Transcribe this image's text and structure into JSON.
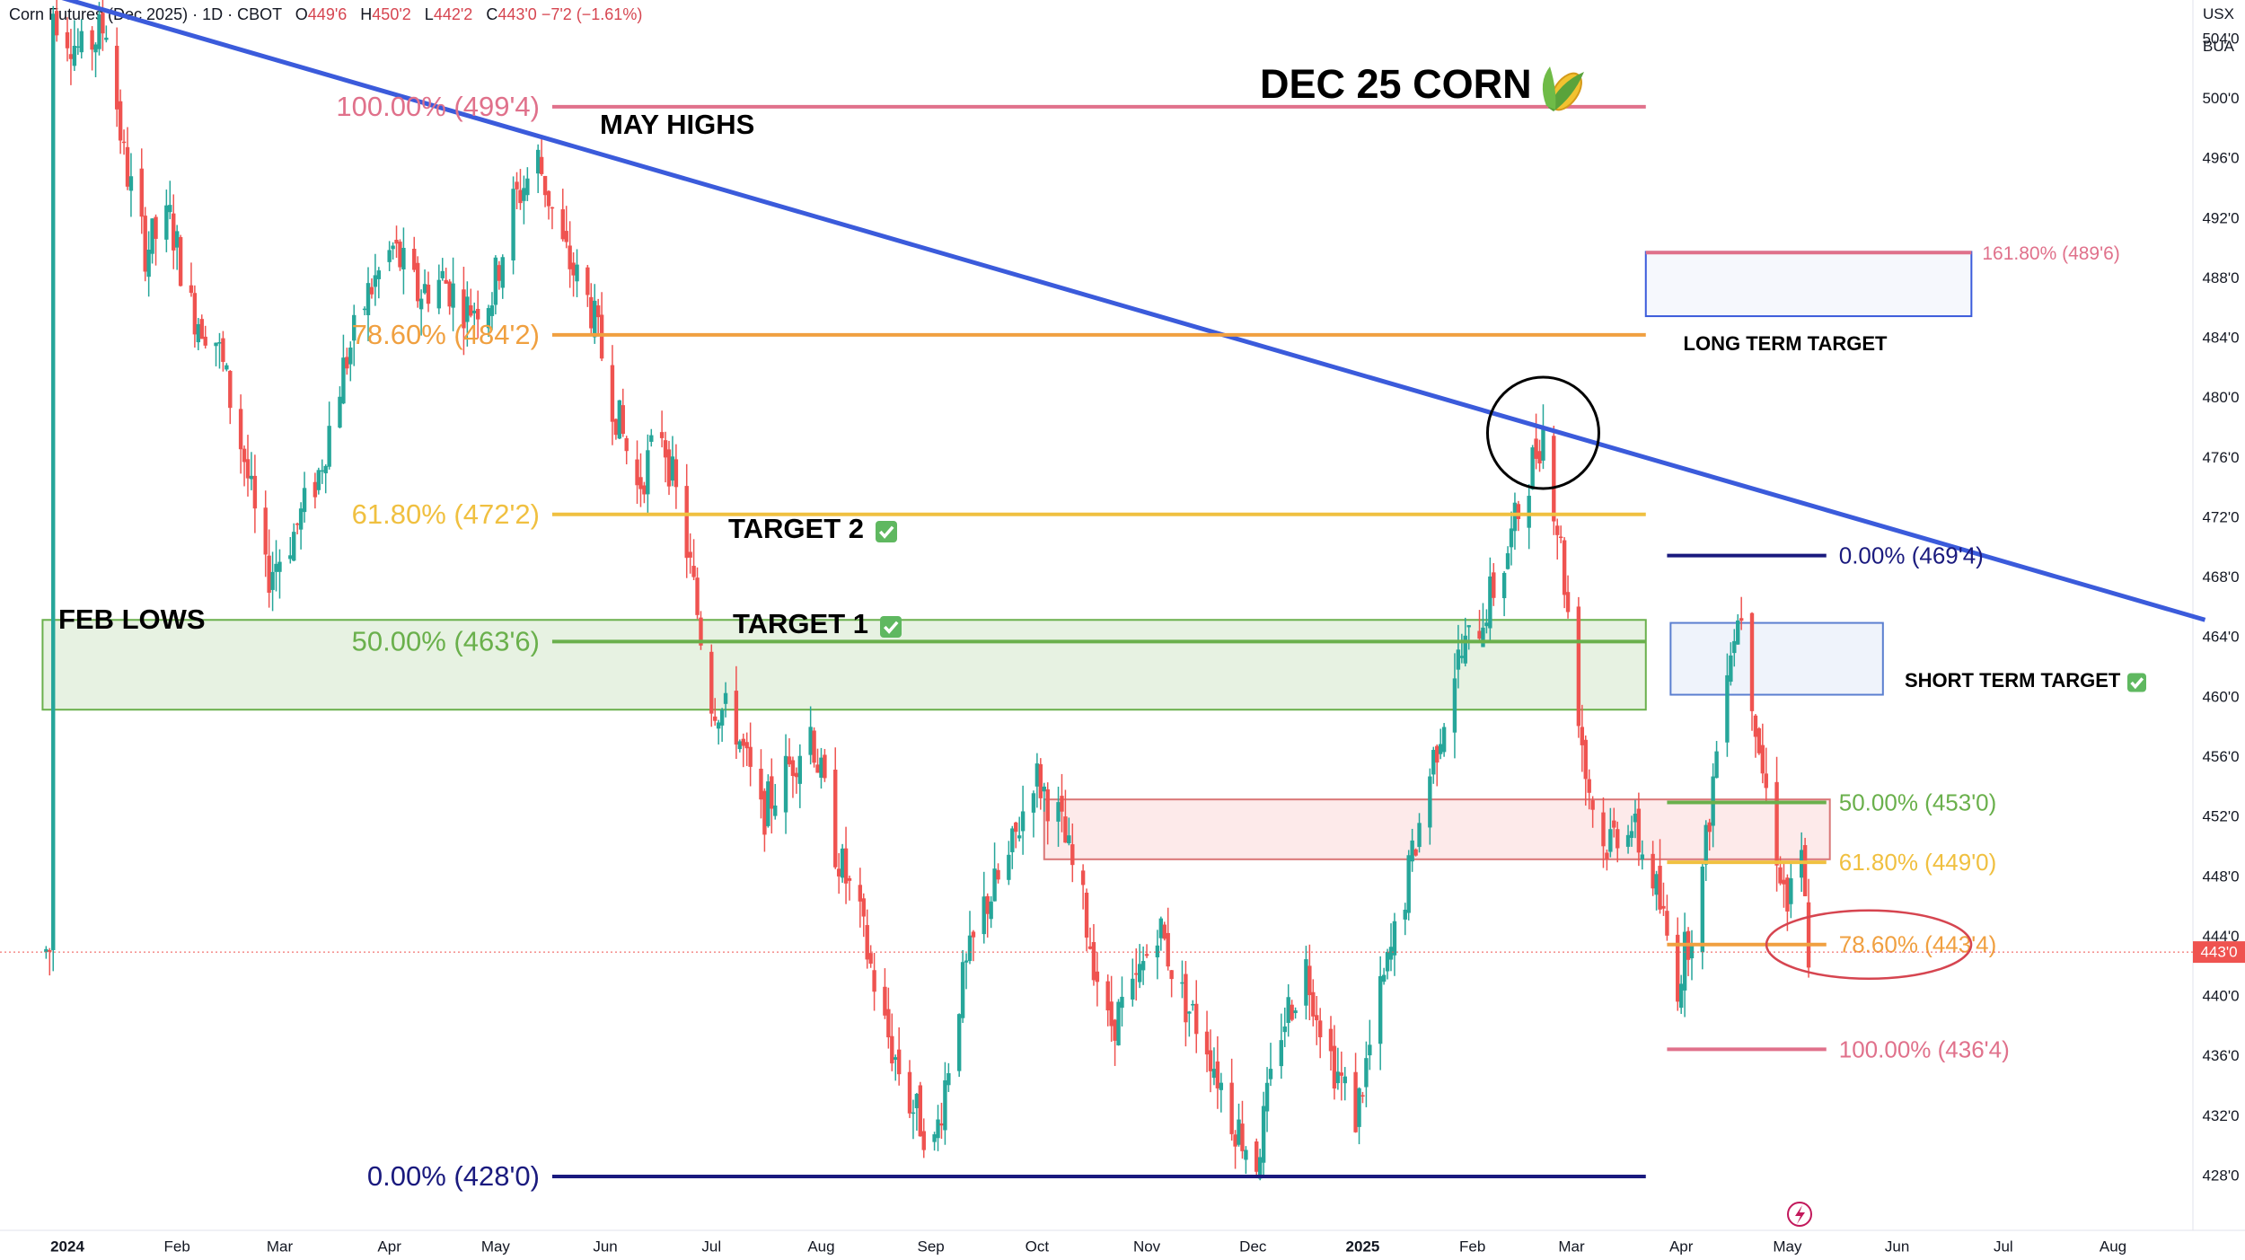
{
  "header": {
    "symbol": "Corn Futures (Dec 2025) · 1D · CBOT",
    "open_label": "O",
    "open": "449'6",
    "high_label": "H",
    "high": "450'2",
    "low_label": "L",
    "low": "442'2",
    "close_label": "C",
    "close": "443'0",
    "change": "−7'2 (−1.61%)"
  },
  "currency": "USX",
  "unit": "BUA",
  "colors": {
    "up": "#26a69a",
    "down": "#ef5350",
    "trend": "#3b5bdb",
    "fib100": "#e0718b",
    "fib786": "#f0a040",
    "fib618": "#f0c040",
    "fib50": "#6ab04c",
    "fib0": "#1a1a7e"
  },
  "chart_data": {
    "type": "candlestick",
    "title": "DEC 25 CORN",
    "title_icon": "corn-icon",
    "ylim": [
      426,
      508
    ],
    "y_ticks": [
      "428'0",
      "432'0",
      "436'0",
      "440'0",
      "444'0",
      "448'0",
      "452'0",
      "456'0",
      "460'0",
      "464'0",
      "468'0",
      "472'0",
      "476'0",
      "480'0",
      "484'0",
      "488'0",
      "492'0",
      "496'0",
      "500'0",
      "504'0"
    ],
    "y_tick_values": [
      428,
      432,
      436,
      440,
      444,
      448,
      452,
      456,
      460,
      464,
      468,
      472,
      476,
      480,
      484,
      488,
      492,
      496,
      500,
      504
    ],
    "x_ticks": [
      "2024",
      "Feb",
      "Mar",
      "Apr",
      "May",
      "Jun",
      "Jul",
      "Aug",
      "Sep",
      "Oct",
      "Nov",
      "Dec",
      "2025",
      "Feb",
      "Mar",
      "Apr",
      "May",
      "Jun",
      "Jul",
      "Aug"
    ],
    "x_tick_dates": [
      "2024-01-01",
      "2024-02-01",
      "2024-03-01",
      "2024-04-01",
      "2024-05-01",
      "2024-06-01",
      "2024-07-01",
      "2024-08-01",
      "2024-09-01",
      "2024-10-01",
      "2024-11-01",
      "2024-12-01",
      "2025-01-01",
      "2025-02-01",
      "2025-03-01",
      "2025-04-01",
      "2025-05-01",
      "2025-06-01",
      "2025-07-01",
      "2025-08-01"
    ],
    "last_price": "443'0",
    "last_price_value": 443.0,
    "price_path": [
      [
        "2023-12-28",
        506
      ],
      [
        "2024-01-05",
        503
      ],
      [
        "2024-01-12",
        505
      ],
      [
        "2024-01-17",
        496
      ],
      [
        "2024-01-23",
        490
      ],
      [
        "2024-01-30",
        492
      ],
      [
        "2024-02-05",
        486
      ],
      [
        "2024-02-12",
        484
      ],
      [
        "2024-02-20",
        476
      ],
      [
        "2024-02-26",
        468
      ],
      [
        "2024-03-05",
        471
      ],
      [
        "2024-03-12",
        475
      ],
      [
        "2024-03-19",
        482
      ],
      [
        "2024-03-26",
        487
      ],
      [
        "2024-04-02",
        490
      ],
      [
        "2024-04-09",
        487
      ],
      [
        "2024-04-16",
        488
      ],
      [
        "2024-04-23",
        486
      ],
      [
        "2024-04-30",
        487
      ],
      [
        "2024-05-06",
        493
      ],
      [
        "2024-05-13",
        496
      ],
      [
        "2024-05-20",
        490
      ],
      [
        "2024-05-28",
        486
      ],
      [
        "2024-06-03",
        480
      ],
      [
        "2024-06-10",
        474
      ],
      [
        "2024-06-17",
        478
      ],
      [
        "2024-06-24",
        470
      ],
      [
        "2024-07-01",
        460
      ],
      [
        "2024-07-08",
        458
      ],
      [
        "2024-07-15",
        452
      ],
      [
        "2024-07-22",
        455
      ],
      [
        "2024-07-29",
        458
      ],
      [
        "2024-08-05",
        450
      ],
      [
        "2024-08-12",
        445
      ],
      [
        "2024-08-19",
        438
      ],
      [
        "2024-08-26",
        433
      ],
      [
        "2024-09-02",
        430
      ],
      [
        "2024-09-09",
        440
      ],
      [
        "2024-09-16",
        446
      ],
      [
        "2024-09-23",
        449
      ],
      [
        "2024-09-30",
        455
      ],
      [
        "2024-10-07",
        452
      ],
      [
        "2024-10-14",
        446
      ],
      [
        "2024-10-21",
        438
      ],
      [
        "2024-10-28",
        440
      ],
      [
        "2024-11-04",
        445
      ],
      [
        "2024-11-11",
        440
      ],
      [
        "2024-11-18",
        437
      ],
      [
        "2024-11-25",
        432
      ],
      [
        "2024-12-02",
        429
      ],
      [
        "2024-12-09",
        438
      ],
      [
        "2024-12-16",
        442
      ],
      [
        "2024-12-23",
        436
      ],
      [
        "2024-12-30",
        432
      ],
      [
        "2025-01-06",
        440
      ],
      [
        "2025-01-13",
        447
      ],
      [
        "2025-01-20",
        455
      ],
      [
        "2025-01-27",
        462
      ],
      [
        "2025-02-03",
        465
      ],
      [
        "2025-02-10",
        469
      ],
      [
        "2025-02-17",
        475
      ],
      [
        "2025-02-21",
        478
      ],
      [
        "2025-02-26",
        470
      ],
      [
        "2025-03-05",
        455
      ],
      [
        "2025-03-10",
        450
      ],
      [
        "2025-03-17",
        452
      ],
      [
        "2025-03-24",
        448
      ],
      [
        "2025-03-31",
        441
      ],
      [
        "2025-04-07",
        448
      ],
      [
        "2025-04-14",
        463
      ],
      [
        "2025-04-18",
        466
      ],
      [
        "2025-04-24",
        455
      ],
      [
        "2025-05-01",
        446
      ],
      [
        "2025-05-05",
        449
      ],
      [
        "2025-05-07",
        443
      ]
    ],
    "annotations": {
      "may_highs": "MAY HIGHS",
      "feb_lows": "FEB LOWS",
      "target2": "TARGET 2",
      "target1": "TARGET 1",
      "long_term_target": "LONG TERM TARGET",
      "short_term_target": "SHORT TERM TARGET"
    },
    "fib_long": [
      {
        "label": "100.00% (499'4)",
        "value": 499.5,
        "color": "#e0718b",
        "date_from": "2024-05-17",
        "date_to": "2025-03-22"
      },
      {
        "label": "78.60% (484'2)",
        "value": 484.25,
        "color": "#f0a040",
        "date_from": "2024-05-17",
        "date_to": "2025-03-22"
      },
      {
        "label": "61.80% (472'2)",
        "value": 472.25,
        "color": "#f0c040",
        "date_from": "2024-05-17",
        "date_to": "2025-03-22"
      },
      {
        "label": "50.00% (463'6)",
        "value": 463.75,
        "color": "#6ab04c",
        "date_from": "2024-05-17",
        "date_to": "2025-03-22"
      },
      {
        "label": "0.00% (428'0)",
        "value": 428.0,
        "color": "#1a1a7e",
        "date_from": "2024-05-17",
        "date_to": "2025-03-22"
      },
      {
        "label": "161.80% (489'6)",
        "value": 489.75,
        "color": "#e0718b",
        "date_from": "2025-03-22",
        "date_to": "2025-06-22"
      }
    ],
    "fib_short": [
      {
        "label": "0.00% (469'4)",
        "value": 469.5,
        "color": "#1a1a7e",
        "date_from": "2025-03-28",
        "date_to": "2025-05-12"
      },
      {
        "label": "50.00% (453'0)",
        "value": 453.0,
        "color": "#6ab04c",
        "date_from": "2025-03-28",
        "date_to": "2025-05-12"
      },
      {
        "label": "61.80% (449'0)",
        "value": 449.0,
        "color": "#f0c040",
        "date_from": "2025-03-28",
        "date_to": "2025-05-12"
      },
      {
        "label": "78.60% (443'4)",
        "value": 443.5,
        "color": "#f0a040",
        "date_from": "2025-03-28",
        "date_to": "2025-05-12"
      },
      {
        "label": "100.00% (436'4)",
        "value": 436.5,
        "color": "#e0718b",
        "date_from": "2025-03-28",
        "date_to": "2025-05-12"
      }
    ],
    "trendline": {
      "from": [
        "2023-12-20",
        507.5
      ],
      "to": [
        "2025-08-27",
        465.2
      ],
      "color": "#3b5bdb"
    },
    "zones": [
      {
        "name": "feb-lows-zone",
        "y_from": 459.2,
        "y_to": 465.2,
        "date_from": "2023-12-25",
        "date_to": "2025-03-22",
        "fill": "rgba(106,176,76,0.16)",
        "stroke": "#6ab04c"
      },
      {
        "name": "resistance-zone",
        "y_from": 449.2,
        "y_to": 453.2,
        "date_from": "2024-10-03",
        "date_to": "2025-05-13",
        "fill": "rgba(239,83,80,0.12)",
        "stroke": "#d97777"
      },
      {
        "name": "short-term-target-zone",
        "y_from": 460.2,
        "y_to": 465.0,
        "date_from": "2025-03-29",
        "date_to": "2025-05-28",
        "fill": "rgba(100,140,220,0.10)",
        "stroke": "#5b7fd0"
      },
      {
        "name": "long-term-target-zone",
        "y_from": 485.5,
        "y_to": 489.8,
        "date_from": "2025-03-22",
        "date_to": "2025-06-22",
        "fill": "rgba(100,140,220,0.06)",
        "stroke": "#3b5bdb"
      }
    ],
    "circles": [
      {
        "name": "trendline-test-circle",
        "date": "2025-02-21",
        "value": 477.7,
        "color": "#000000"
      },
      {
        "name": "fib-786-ellipse",
        "date": "2025-05-24",
        "value": 443.5,
        "color": "#d64550"
      }
    ]
  }
}
